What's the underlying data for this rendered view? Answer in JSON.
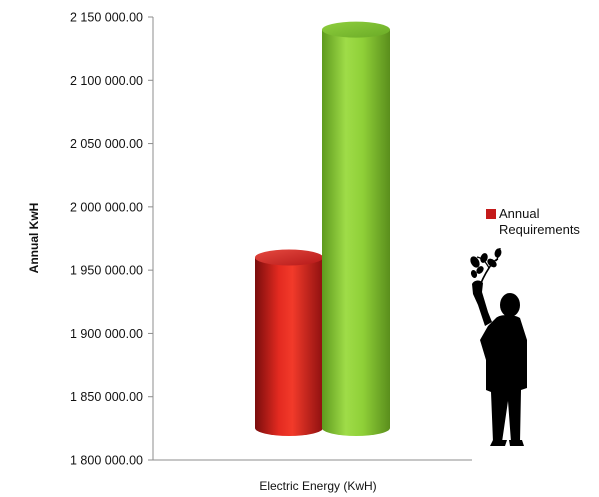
{
  "chart_data": {
    "type": "bar",
    "variant": "3d-cylinder",
    "title": "",
    "xlabel": "Electric Energy (KwH)",
    "ylabel": "Annual KwH",
    "ylim": [
      1800000,
      2150000
    ],
    "yticks": [
      1800000,
      1850000,
      1900000,
      1950000,
      2000000,
      2050000,
      2100000,
      2150000
    ],
    "ytick_labels": [
      "1 800 000.00",
      "1 850 000.00",
      "1 900 000.00",
      "1 950 000.00",
      "2 000 000.00",
      "2 050 000.00",
      "2 100 000.00",
      "2 150 000.00"
    ],
    "grid": false,
    "legend_position": "right",
    "legend": [
      {
        "line1": "Annual",
        "line2": "Requirements",
        "color": "#c41a1a"
      }
    ],
    "bars": [
      {
        "value": 1960000,
        "color": "#d01e1e"
      },
      {
        "value": 2140000,
        "color": "#7cc231"
      }
    ]
  },
  "decoration": {
    "icon": "person-holding-plant-silhouette-icon"
  }
}
